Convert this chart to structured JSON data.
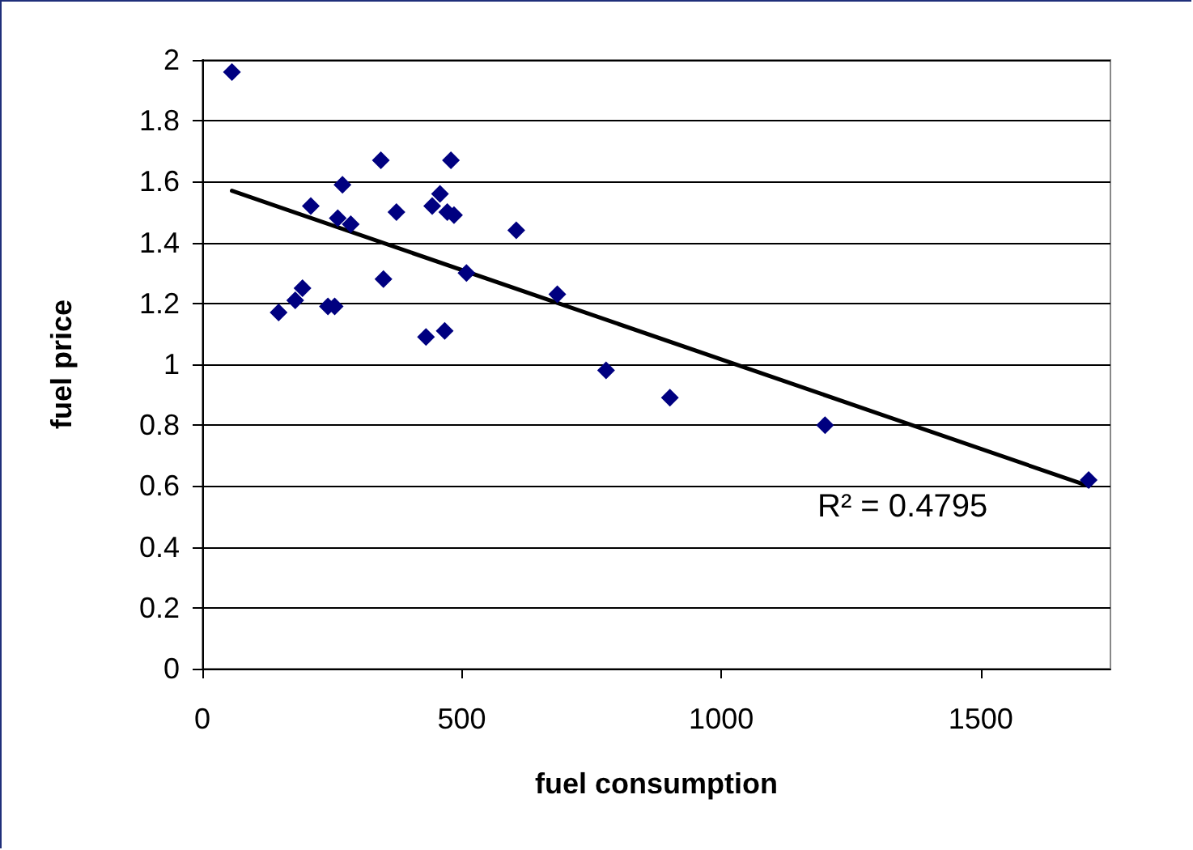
{
  "chart_data": {
    "type": "scatter",
    "xlabel": "fuel consumption",
    "ylabel": "fuel price",
    "xlim": [
      0,
      1750
    ],
    "xticks": [
      0,
      500,
      1000,
      1500
    ],
    "ylim": [
      0,
      2
    ],
    "yticks": [
      0,
      0.2,
      0.4,
      0.6,
      0.8,
      1,
      1.2,
      1.4,
      1.6,
      1.8,
      2
    ],
    "grid": "y",
    "marker": "diamond",
    "annotations": [
      "R² = 0.4795"
    ],
    "series": [
      {
        "color": "#000080",
        "x": [
          57,
          344,
          479,
          270,
          209,
          458,
          443,
          374,
          472,
          485,
          261,
          286,
          605,
          509,
          349,
          193,
          179,
          147,
          242,
          255,
          431,
          467,
          684,
          778,
          901,
          1200,
          1708
        ],
        "values": [
          1.96,
          1.67,
          1.67,
          1.59,
          1.52,
          1.56,
          1.52,
          1.5,
          1.5,
          1.49,
          1.48,
          1.46,
          1.44,
          1.3,
          1.28,
          1.25,
          1.21,
          1.17,
          1.19,
          1.19,
          1.09,
          1.11,
          1.23,
          0.98,
          0.89,
          0.8,
          0.62
        ]
      },
      {
        "type": "line",
        "color": "#000000",
        "marker": "none",
        "x": [
          57,
          1708
        ],
        "values": [
          1.57,
          0.6
        ]
      }
    ]
  }
}
